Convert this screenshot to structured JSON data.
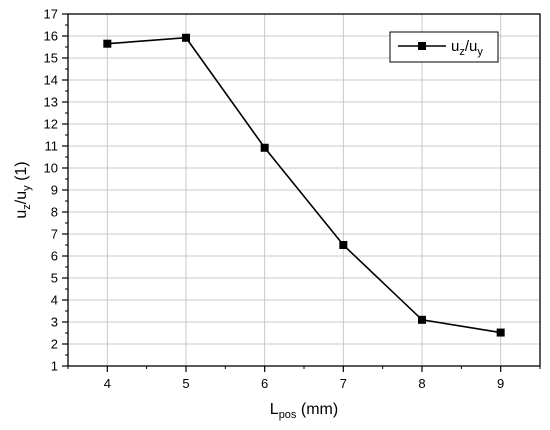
{
  "chart_data": {
    "type": "line",
    "x": [
      4,
      5,
      6,
      7,
      8,
      9
    ],
    "series": [
      {
        "name": "u_z/u_y",
        "values": [
          15.65,
          15.92,
          10.92,
          6.5,
          3.1,
          2.52
        ]
      }
    ],
    "xlabel": {
      "main": "L",
      "sub": "pos",
      "tail": " (mm)"
    },
    "ylabel": {
      "p1": "u",
      "s1": "z",
      "p2": "/u",
      "s2": "y",
      "p3": " (1)"
    },
    "legend_label": {
      "p1": "u",
      "s1": "z",
      "p2": "/u",
      "s2": "y"
    },
    "xlim": [
      3.5,
      9.5
    ],
    "ylim": [
      1,
      17
    ],
    "xticks": [
      "4",
      "5",
      "6",
      "7",
      "8",
      "9"
    ],
    "yticks": [
      "1",
      "2",
      "3",
      "4",
      "5",
      "6",
      "7",
      "8",
      "9",
      "10",
      "11",
      "12",
      "13",
      "14",
      "15",
      "16",
      "17"
    ],
    "grid": true,
    "legend_position": "top-right",
    "marker": "square",
    "colors": {
      "line": "#000000",
      "grid": "#c8c8c8"
    }
  }
}
